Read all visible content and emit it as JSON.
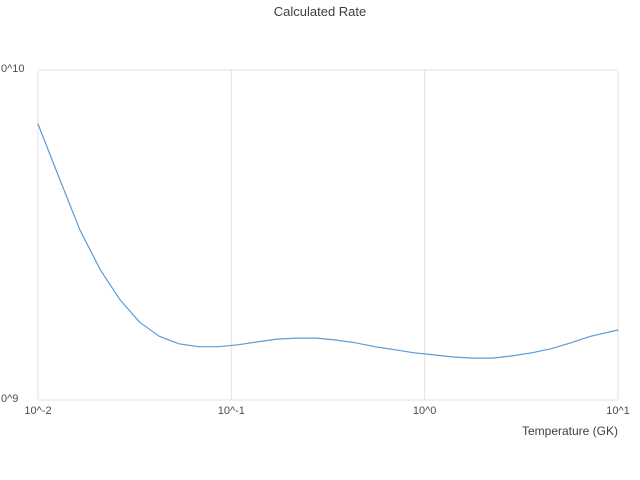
{
  "chart_data": {
    "type": "line",
    "title": "Calculated Rate",
    "xlabel": "Temperature (GK)",
    "ylabel": "",
    "x_scale": "log",
    "y_scale": "log",
    "xlim": [
      0.01,
      10
    ],
    "ylim": [
      1000000000.0,
      10000000000.0
    ],
    "grid": true,
    "legend": "none",
    "series_name": "calculated-rate",
    "x": [
      0.01,
      0.013,
      0.0165,
      0.021,
      0.0266,
      0.0336,
      0.0424,
      0.0536,
      0.0677,
      0.0855,
      0.108,
      0.136,
      0.172,
      0.218,
      0.275,
      0.347,
      0.438,
      0.553,
      0.699,
      0.883,
      1.115,
      1.408,
      1.778,
      2.245,
      2.835,
      3.58,
      4.52,
      5.71,
      7.21,
      10.0
    ],
    "y": [
      6860000000.0,
      4640000000.0,
      3270000000.0,
      2480000000.0,
      2010000000.0,
      1720000000.0,
      1560000000.0,
      1480000000.0,
      1450000000.0,
      1450000000.0,
      1470000000.0,
      1500000000.0,
      1530000000.0,
      1540000000.0,
      1540000000.0,
      1520000000.0,
      1490000000.0,
      1450000000.0,
      1420000000.0,
      1390000000.0,
      1370000000.0,
      1350000000.0,
      1340000000.0,
      1340000000.0,
      1360000000.0,
      1390000000.0,
      1430000000.0,
      1490000000.0,
      1560000000.0,
      1630000000.0
    ],
    "x_ticks": [
      {
        "value": 0.01,
        "label": "10^-2"
      },
      {
        "value": 0.1,
        "label": "10^-1"
      },
      {
        "value": 1,
        "label": "10^0"
      },
      {
        "value": 10,
        "label": "10^1"
      }
    ],
    "y_ticks": [
      {
        "value": 1000000000.0,
        "label": "0^9"
      },
      {
        "value": 10000000000.0,
        "label": "0^10"
      }
    ],
    "colors": {
      "line": "#5b9bd5",
      "grid": "#e2e2e2",
      "text": "#3f3f3f",
      "tick_text": "#4d4d4d",
      "background": "#ffffff"
    }
  }
}
